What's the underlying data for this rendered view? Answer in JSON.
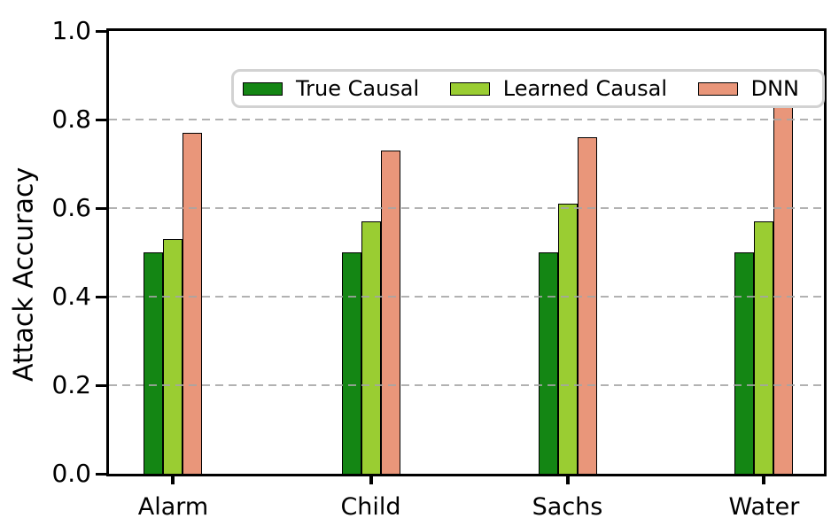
{
  "chart_data": {
    "type": "bar",
    "title": "",
    "xlabel": "",
    "ylabel": "Attack Accuracy",
    "categories": [
      "Alarm",
      "Child",
      "Sachs",
      "Water"
    ],
    "series": [
      {
        "name": "True Causal",
        "color": "#148614",
        "values": [
          0.5,
          0.5,
          0.5,
          0.5
        ]
      },
      {
        "name": "Learned Causal",
        "color": "#9ACD32",
        "values": [
          0.53,
          0.57,
          0.61,
          0.57
        ]
      },
      {
        "name": "DNN",
        "color": "#E9967A",
        "values": [
          0.77,
          0.73,
          0.76,
          0.83
        ]
      }
    ],
    "ylim": [
      0.0,
      1.0
    ],
    "yticks": [
      "0.0",
      "0.2",
      "0.4",
      "0.6",
      "0.8",
      "1.0"
    ],
    "grid": "horizontal-dashed-above-bars",
    "legend_position": "top-inside",
    "bar_edge_color": "#000000",
    "axis_color": "#000000",
    "grid_color": "#a5a5a5",
    "legend_border_color": "#d2d2d2"
  }
}
